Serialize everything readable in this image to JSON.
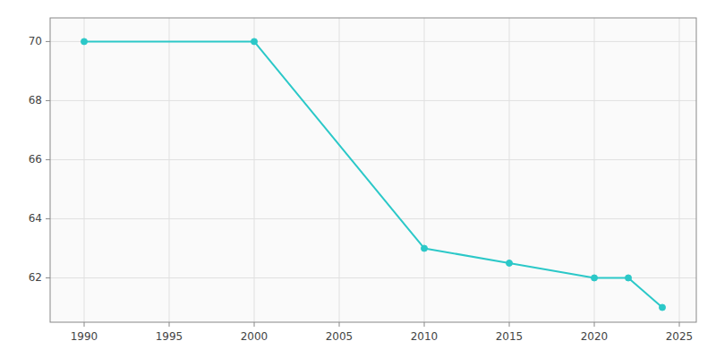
{
  "chart_data": {
    "type": "line",
    "x": [
      1990,
      2000,
      2010,
      2015,
      2020,
      2022,
      2024
    ],
    "values": [
      70.0,
      70.0,
      63.0,
      62.5,
      62.0,
      62.0,
      61.0
    ],
    "color": "#2bc8c8",
    "marker": "circle",
    "xlim": [
      1988,
      2026
    ],
    "ylim": [
      60.5,
      70.8
    ],
    "xticks": [
      1990,
      1995,
      2000,
      2005,
      2010,
      2015,
      2020,
      2025
    ],
    "yticks": [
      62,
      64,
      66,
      68,
      70
    ],
    "grid": true
  }
}
